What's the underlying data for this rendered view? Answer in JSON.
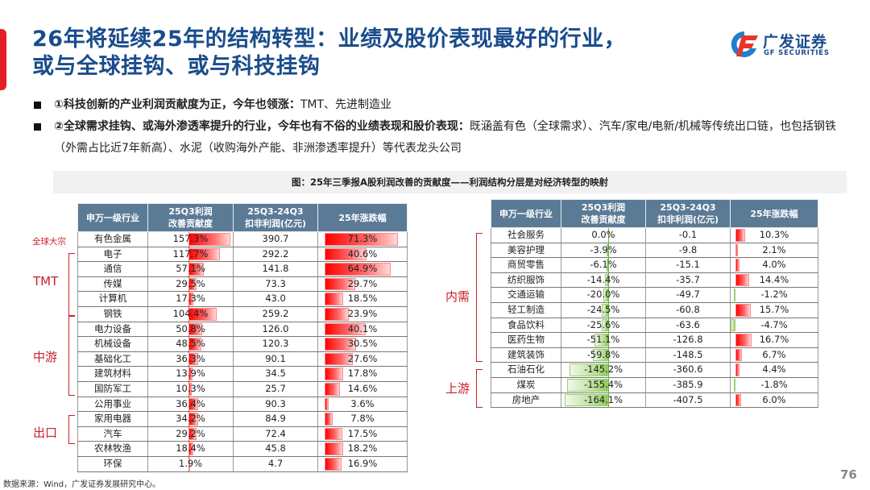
{
  "header": {
    "title_line1": "26年将延续25年的结构转型：业绩及股价表现最好的行业，",
    "title_line2": "或与全球挂钩、或与科技挂钩",
    "logo": {
      "icon": "gf-logo-icon",
      "name_cn": "广发证券",
      "name_en": "GF SECURITIES"
    }
  },
  "bullets": [
    {
      "bold": "①科技创新的产业利润贡献度为正，今年也领涨：",
      "text": "TMT、先进制造业"
    },
    {
      "bold": "②全球需求挂钩、或海外渗透率提升的行业，今年也有不俗的业绩表现和股价表现：",
      "text": "既涵盖有色（全球需求）、汽车/家电/电新/机械等传统出口链，也包括钢铁（外需占比近7年新高）、水泥（收购海外产能、非洲渗透率提升）等代表龙头公司"
    }
  ],
  "figure": {
    "title": "图：25年三季报A股利润改善的贡献度——利润结构分层是对经济转型的映射"
  },
  "table_headers": {
    "industry": "申万一级行业",
    "contrib_l1": "25Q3利润",
    "contrib_l2": "改善贡献度",
    "profit_l1": "25Q3-24Q3",
    "profit_l2": "扣非利润(亿元)",
    "change": "25年涨跌幅"
  },
  "left_table": {
    "rows": [
      {
        "industry": "有色金属",
        "contrib": "157.3%",
        "contrib_num": 157.3,
        "profit": "390.7",
        "change": "71.3%",
        "change_num": 71.3
      },
      {
        "industry": "电子",
        "contrib": "117.7%",
        "contrib_num": 117.7,
        "profit": "292.2",
        "change": "40.6%",
        "change_num": 40.6
      },
      {
        "industry": "通信",
        "contrib": "57.1%",
        "contrib_num": 57.1,
        "profit": "141.8",
        "change": "64.9%",
        "change_num": 64.9
      },
      {
        "industry": "传媒",
        "contrib": "29.5%",
        "contrib_num": 29.5,
        "profit": "73.3",
        "change": "29.7%",
        "change_num": 29.7
      },
      {
        "industry": "计算机",
        "contrib": "17.3%",
        "contrib_num": 17.3,
        "profit": "43.0",
        "change": "18.5%",
        "change_num": 18.5
      },
      {
        "industry": "钢铁",
        "contrib": "104.4%",
        "contrib_num": 104.4,
        "profit": "259.2",
        "change": "23.9%",
        "change_num": 23.9
      },
      {
        "industry": "电力设备",
        "contrib": "50.8%",
        "contrib_num": 50.8,
        "profit": "126.0",
        "change": "40.1%",
        "change_num": 40.1
      },
      {
        "industry": "机械设备",
        "contrib": "48.5%",
        "contrib_num": 48.5,
        "profit": "120.3",
        "change": "30.5%",
        "change_num": 30.5
      },
      {
        "industry": "基础化工",
        "contrib": "36.3%",
        "contrib_num": 36.3,
        "profit": "90.1",
        "change": "27.6%",
        "change_num": 27.6
      },
      {
        "industry": "建筑材料",
        "contrib": "13.9%",
        "contrib_num": 13.9,
        "profit": "34.5",
        "change": "17.8%",
        "change_num": 17.8
      },
      {
        "industry": "国防军工",
        "contrib": "10.3%",
        "contrib_num": 10.3,
        "profit": "25.7",
        "change": "14.6%",
        "change_num": 14.6
      },
      {
        "industry": "公用事业",
        "contrib": "36.4%",
        "contrib_num": 36.4,
        "profit": "90.3",
        "change": "3.6%",
        "change_num": 3.6
      },
      {
        "industry": "家用电器",
        "contrib": "34.2%",
        "contrib_num": 34.2,
        "profit": "84.9",
        "change": "7.8%",
        "change_num": 7.8
      },
      {
        "industry": "汽车",
        "contrib": "29.2%",
        "contrib_num": 29.2,
        "profit": "72.4",
        "change": "17.5%",
        "change_num": 17.5
      },
      {
        "industry": "农林牧渔",
        "contrib": "18.4%",
        "contrib_num": 18.4,
        "profit": "45.8",
        "change": "18.2%",
        "change_num": 18.2
      },
      {
        "industry": "环保",
        "contrib": "1.9%",
        "contrib_num": 1.9,
        "profit": "4.7",
        "change": "16.9%",
        "change_num": 16.9
      }
    ],
    "groups": [
      {
        "label": "全球大宗",
        "rows": [
          0,
          0
        ]
      },
      {
        "label": "TMT",
        "rows": [
          1,
          4
        ]
      },
      {
        "label": "中游",
        "rows": [
          5,
          10
        ]
      },
      {
        "label": "出口",
        "rows": [
          12,
          13
        ]
      }
    ]
  },
  "right_table": {
    "rows": [
      {
        "industry": "社会服务",
        "contrib": "0.0%",
        "contrib_num": 0.0,
        "profit": "-0.1",
        "change": "10.3%",
        "change_num": 10.3
      },
      {
        "industry": "美容护理",
        "contrib": "-3.9%",
        "contrib_num": -3.9,
        "profit": "-9.8",
        "change": "2.1%",
        "change_num": 2.1
      },
      {
        "industry": "商贸零售",
        "contrib": "-6.1%",
        "contrib_num": -6.1,
        "profit": "-15.1",
        "change": "4.0%",
        "change_num": 4.0
      },
      {
        "industry": "纺织服饰",
        "contrib": "-14.4%",
        "contrib_num": -14.4,
        "profit": "-35.7",
        "change": "14.4%",
        "change_num": 14.4
      },
      {
        "industry": "交通运输",
        "contrib": "-20.0%",
        "contrib_num": -20.0,
        "profit": "-49.7",
        "change": "-1.2%",
        "change_num": -1.2
      },
      {
        "industry": "轻工制造",
        "contrib": "-24.5%",
        "contrib_num": -24.5,
        "profit": "-60.8",
        "change": "15.7%",
        "change_num": 15.7
      },
      {
        "industry": "食品饮料",
        "contrib": "-25.6%",
        "contrib_num": -25.6,
        "profit": "-63.6",
        "change": "-4.7%",
        "change_num": -4.7
      },
      {
        "industry": "医药生物",
        "contrib": "-51.1%",
        "contrib_num": -51.1,
        "profit": "-126.8",
        "change": "16.7%",
        "change_num": 16.7
      },
      {
        "industry": "建筑装饰",
        "contrib": "-59.8%",
        "contrib_num": -59.8,
        "profit": "-148.5",
        "change": "6.7%",
        "change_num": 6.7
      },
      {
        "industry": "石油石化",
        "contrib": "-145.2%",
        "contrib_num": -145.2,
        "profit": "-360.6",
        "change": "4.4%",
        "change_num": 4.4
      },
      {
        "industry": "煤炭",
        "contrib": "-155.4%",
        "contrib_num": -155.4,
        "profit": "-385.9",
        "change": "-1.8%",
        "change_num": -1.8
      },
      {
        "industry": "房地产",
        "contrib": "-164.1%",
        "contrib_num": -164.1,
        "profit": "-407.5",
        "change": "6.0%",
        "change_num": 6.0
      }
    ],
    "groups": [
      {
        "label": "内需",
        "rows": [
          0,
          8
        ]
      },
      {
        "label": "上游",
        "rows": [
          9,
          11
        ]
      }
    ]
  },
  "colors": {
    "title_blue": "#1a4c8c",
    "accent_red": "#e31e24",
    "header_fill": "#5b7a96",
    "bar_positive": "#ff0000",
    "bar_negative": "#8fcb5f",
    "group_label_red": "#c8202a"
  },
  "footer": {
    "source": "数据来源：Wind，广发证券发展研究中心。",
    "page_number": "76"
  }
}
